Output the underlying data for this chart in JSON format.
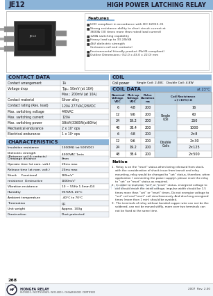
{
  "title_left": "JE12",
  "title_right": "HIGH POWER LATCHING RELAY",
  "header_bg": "#8faacc",
  "features_items": [
    "UCD compliant in accordance with IEC 62055-31",
    "Strong resistance ability to short circuit current at\n3600A (30 times more than rated load current)",
    "120A switching capability",
    "Heavy load up to 33.24kVA",
    "4kV dielectric strength\n(between coil and contacts)",
    "Environmental friendly product (RoHS compliant)",
    "Outline Dimensions: (52.0 x 43.0 x 22.0) mm"
  ],
  "contact_data_title": "CONTACT DATA",
  "contact_rows": [
    [
      "Contact arrangement",
      "1A"
    ],
    [
      "Voltage drop",
      "Typ.: 50mV (at 10A)"
    ],
    [
      "",
      "Max.: 200mV (at 10A)"
    ],
    [
      "Contact material",
      "Silver alloy"
    ],
    [
      "Contact rating (Res. load)",
      "120A 277VAC/28VDC"
    ],
    [
      "Max. switching voltage",
      "440VAC"
    ],
    [
      "Max. switching current",
      "120A"
    ],
    [
      "Max. switching power",
      "33kVA/3360W(at60Hz)"
    ],
    [
      "Mechanical endurance",
      "2 x 10⁴ ops"
    ],
    [
      "Electrical endurance",
      "1 x 10⁴ ops"
    ]
  ],
  "coil_title": "COIL",
  "coil_power_label": "Coil power",
  "coil_power_value": "Single Coil: 2.4W;   Double Coil: 4.8W",
  "coil_data_title": "COIL DATA",
  "coil_data_subtitle": "at 23°C",
  "coil_col_headers": [
    "Nominal\nVoltage\nVDC",
    "Pick-up\nVoltage\nVDC",
    "Pulse\nDuration\nms",
    "Coil Resistance\n±(+10%) Ω"
  ],
  "coil_rows": [
    [
      "6",
      "4.8",
      "200",
      "Single\nCoil",
      "16"
    ],
    [
      "12",
      "9.6",
      "200",
      "",
      "60"
    ],
    [
      "24",
      "19.2",
      "200",
      "",
      "250"
    ],
    [
      "48",
      "38.4",
      "200",
      "",
      "1000"
    ],
    [
      "6",
      "4.8",
      "200",
      "Double\nCoils",
      "2×8"
    ],
    [
      "12",
      "9.6",
      "200",
      "",
      "2×30"
    ],
    [
      "24",
      "19.2",
      "200",
      "",
      "2×125"
    ],
    [
      "48",
      "38.4",
      "200",
      "",
      "2×500"
    ]
  ],
  "char_title": "CHARACTERISTICS",
  "char_rows": [
    [
      "Insulation resistance",
      "1000MΩ (at 500VDC)"
    ],
    [
      "Dielectric strength\n(Between coil & contacts)",
      "4000VAC 1min"
    ],
    [
      "Creepage distance",
      "8mm"
    ],
    [
      "Operate time (at nom. volt.)",
      "20ms max"
    ],
    [
      "Release time (at nom. volt.)",
      "20ms max"
    ],
    [
      "Shock     Functional",
      "100m/s²"
    ],
    [
      "resistance  Destructive",
      "1000m/s²"
    ],
    [
      "Vibration resistance",
      "10 ~ 55Hz 1.5mm D4"
    ],
    [
      "Humidity",
      "95%RH, 40°C"
    ],
    [
      "Ambient temperature",
      "-40°C to 70°C"
    ],
    [
      "Termination",
      "QC"
    ],
    [
      "Unit weight",
      "Approx. 100g"
    ],
    [
      "Construction",
      "Dust protected"
    ]
  ],
  "notice_lines": [
    "1.  Relay is on the “reset” status when being released from stock,",
    "    with the consideration of shock issue from transit and relay",
    "    mounting, relay would be changed to “set” status, therefore, when",
    "    application ( connecting the power supply), please reset the relay",
    "    to “set” or “reset” status as required.",
    "2.  In order to maintain “set” or “reset” status, energized voltage to",
    "    coil should reach the rated voltage, impulse width should be 1.5",
    "    times more than “set” or “reset” times. Do not energize voltage to",
    "    “set” coil and “reset” coil simultaneously. And also long energized",
    "    times (more than 1 min) should be avoided.",
    "3.  The terminals of relay without bonded copper wire can not be the",
    "    soldered, can not be moved stiffly, more over two terminals can",
    "    not be fixed at the same time."
  ],
  "footer_company": "HONGFA RELAY",
  "footer_certs": "ISO9001, ISO/TS16949， ISO14001， OHSAS18001 CERTIFIED",
  "footer_year": "2007  Rev. 2.00",
  "footer_page": "268",
  "section_header_bg": "#8cb4d8",
  "coil_header_bg": "#b8cfe0",
  "bg_white": "#ffffff",
  "bg_section": "#f5f8fb",
  "border_color": "#aaaaaa",
  "text_dark": "#1a1a2e",
  "text_black": "#000000"
}
